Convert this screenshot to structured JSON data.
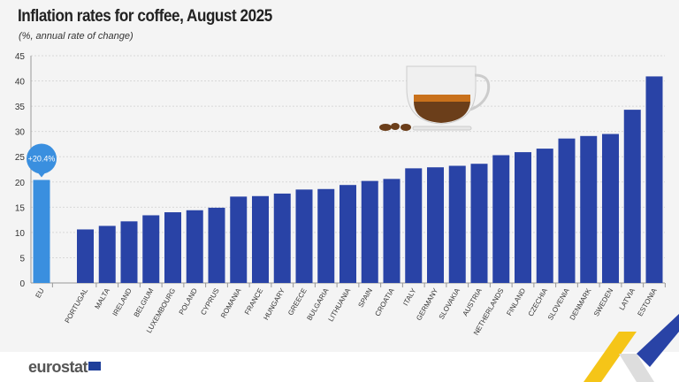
{
  "chart_data": {
    "type": "bar",
    "title": "Inflation rates for coffee, August 2025",
    "subtitle": "(%, annual rate of change)",
    "ylim": [
      0,
      45
    ],
    "yticks": [
      0,
      5,
      10,
      15,
      20,
      25,
      30,
      35,
      40,
      45
    ],
    "grid": true,
    "categories": [
      "EU",
      "PORTUGAL",
      "MALTA",
      "IRELAND",
      "BELGIUM",
      "LUXEMBOURG",
      "POLAND",
      "CYPRUS",
      "ROMANIA",
      "FRANCE",
      "HUNGARY",
      "GREECE",
      "BULGARIA",
      "LITHUANIA",
      "SPAIN",
      "CROATIA",
      "ITALY",
      "GERMANY",
      "SLOVAKIA",
      "AUSTRIA",
      "NETHERLANDS",
      "FINLAND",
      "CZECHIA",
      "SLOVENIA",
      "DENMARK",
      "SWEDEN",
      "LATVIA",
      "ESTONIA"
    ],
    "values": [
      20.4,
      10.6,
      11.3,
      12.2,
      13.4,
      14.0,
      14.4,
      14.9,
      17.1,
      17.2,
      17.7,
      18.5,
      18.6,
      19.4,
      20.2,
      20.6,
      22.7,
      22.9,
      23.2,
      23.6,
      25.3,
      25.9,
      26.6,
      28.6,
      29.1,
      29.5,
      34.3,
      40.9
    ],
    "annotation": "+20.4%",
    "colors": {
      "eu": "#3a8fdf",
      "countries": "#2943a6"
    }
  },
  "footer": {
    "logo": "eurostat"
  }
}
